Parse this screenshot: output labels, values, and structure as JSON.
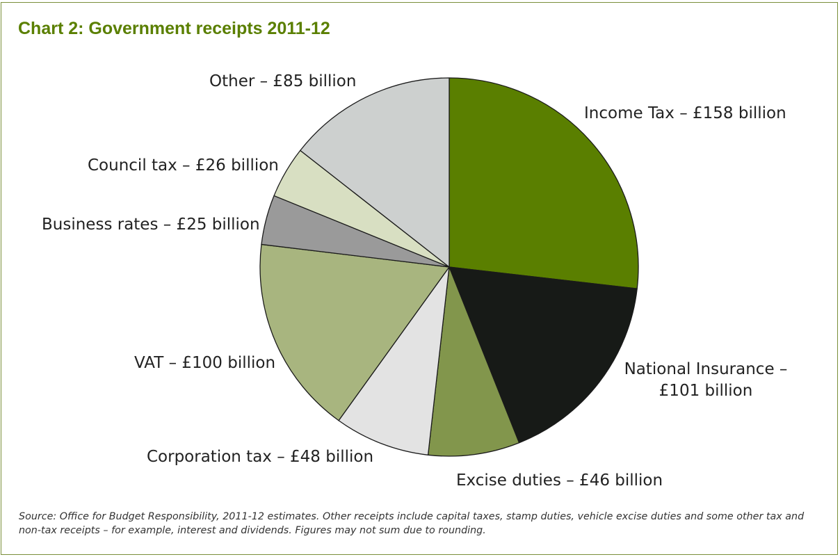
{
  "chart_data": {
    "type": "pie",
    "title": "Chart 2: Government receipts 2011-12",
    "unit": "£ billion",
    "slices": [
      {
        "name": "Income Tax",
        "value": 158,
        "label_lines": [
          "Income Tax – £158 billion"
        ],
        "color": "#5a7f00"
      },
      {
        "name": "National Insurance",
        "value": 101,
        "label_lines": [
          "National Insurance –",
          "£101 billion"
        ],
        "color": "#171a17"
      },
      {
        "name": "Excise duties",
        "value": 46,
        "label_lines": [
          "Excise duties – £46 billion"
        ],
        "color": "#82964c"
      },
      {
        "name": "Corporation tax",
        "value": 48,
        "label_lines": [
          "Corporation tax – £48 billion"
        ],
        "color": "#e3e3e3"
      },
      {
        "name": "VAT",
        "value": 100,
        "label_lines": [
          "VAT – £100 billion"
        ],
        "color": "#a8b57f"
      },
      {
        "name": "Business rates",
        "value": 25,
        "label_lines": [
          "Business rates – £25 billion"
        ],
        "color": "#9a9a9a"
      },
      {
        "name": "Council tax",
        "value": 26,
        "label_lines": [
          "Council tax – £26 billion"
        ],
        "color": "#d8dfc2"
      },
      {
        "name": "Other",
        "value": 85,
        "label_lines": [
          "Other – £85 billion"
        ],
        "color": "#cdd0cf"
      }
    ],
    "source": "Source: Office for Budget Responsibility, 2011-12 estimates. Other receipts include capital taxes, stamp duties, vehicle excise duties and some other tax and non-tax receipts – for example, interest and dividends. Figures may not sum due to rounding."
  },
  "colors": {
    "accent": "#5a7f00",
    "frame": "#7a8f3a"
  }
}
